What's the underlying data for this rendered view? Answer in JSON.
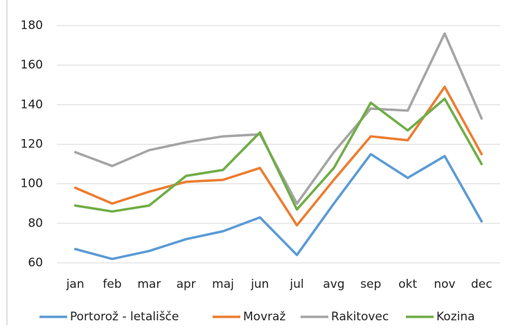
{
  "chart_data": {
    "type": "line",
    "categories": [
      "jan",
      "feb",
      "mar",
      "apr",
      "maj",
      "jun",
      "jul",
      "avg",
      "sep",
      "okt",
      "nov",
      "dec"
    ],
    "series": [
      {
        "name": "Portorož - letališče",
        "color": "#5b9bd5",
        "values": [
          67,
          62,
          66,
          72,
          76,
          83,
          64,
          90,
          115,
          103,
          114,
          81
        ]
      },
      {
        "name": "Movraž",
        "color": "#ed7d31",
        "values": [
          98,
          90,
          96,
          101,
          102,
          108,
          79,
          102,
          124,
          122,
          149,
          115
        ]
      },
      {
        "name": "Rakitovec",
        "color": "#a5a5a5",
        "values": [
          116,
          109,
          117,
          121,
          124,
          125,
          90,
          116,
          138,
          137,
          176,
          133
        ]
      },
      {
        "name": "Kozina",
        "color": "#70ad47",
        "values": [
          89,
          86,
          89,
          104,
          107,
          126,
          87,
          108,
          141,
          127,
          143,
          110
        ]
      }
    ],
    "ylim": [
      60,
      180
    ],
    "yticks": [
      60,
      80,
      100,
      120,
      140,
      160,
      180
    ],
    "grid": true,
    "legend": "bottom"
  }
}
